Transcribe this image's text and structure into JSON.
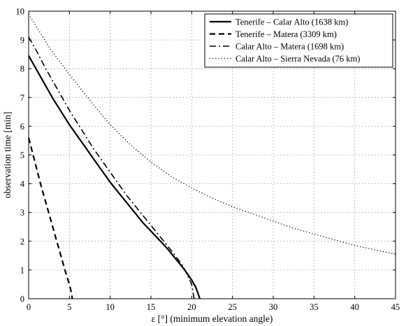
{
  "chart_data": {
    "type": "line",
    "xlabel": "ε [°] (minimum elevation angle)",
    "ylabel": "observation time [min]",
    "xlim": [
      0,
      45
    ],
    "ylim": [
      0,
      10
    ],
    "xticks": [
      0,
      5,
      10,
      15,
      20,
      25,
      30,
      35,
      40,
      45
    ],
    "yticks": [
      0,
      1,
      2,
      3,
      4,
      5,
      6,
      7,
      8,
      9,
      10
    ],
    "grid": true,
    "legend_position": "top-right",
    "series": [
      {
        "name": "Tenerife – Calar Alto (1638 km)",
        "style": "solid",
        "color": "#000000",
        "points": [
          [
            0,
            8.45
          ],
          [
            1,
            7.95
          ],
          [
            2,
            7.45
          ],
          [
            3,
            6.95
          ],
          [
            4,
            6.5
          ],
          [
            5,
            6.05
          ],
          [
            6,
            5.65
          ],
          [
            7,
            5.25
          ],
          [
            8,
            4.85
          ],
          [
            9,
            4.45
          ],
          [
            10,
            4.05
          ],
          [
            11,
            3.7
          ],
          [
            12,
            3.35
          ],
          [
            13,
            3.0
          ],
          [
            14,
            2.65
          ],
          [
            15,
            2.35
          ],
          [
            16,
            2.05
          ],
          [
            17,
            1.75
          ],
          [
            18,
            1.4
          ],
          [
            19,
            1.05
          ],
          [
            20,
            0.65
          ],
          [
            20.5,
            0.4
          ],
          [
            21,
            0.0
          ]
        ]
      },
      {
        "name": "Tenerife – Matera (3309 km)",
        "style": "dashed",
        "color": "#000000",
        "points": [
          [
            0,
            5.6
          ],
          [
            0.5,
            5.05
          ],
          [
            1,
            4.5
          ],
          [
            1.5,
            3.95
          ],
          [
            2,
            3.45
          ],
          [
            2.5,
            2.95
          ],
          [
            3,
            2.45
          ],
          [
            3.5,
            1.95
          ],
          [
            4,
            1.45
          ],
          [
            4.5,
            0.95
          ],
          [
            5,
            0.5
          ],
          [
            5.25,
            0.2
          ],
          [
            5.35,
            0.0
          ]
        ]
      },
      {
        "name": "Calar Alto – Matera (1698 km)",
        "style": "dashdot",
        "color": "#000000",
        "points": [
          [
            0,
            9.1
          ],
          [
            1,
            8.6
          ],
          [
            2,
            8.05
          ],
          [
            3,
            7.55
          ],
          [
            4,
            7.05
          ],
          [
            5,
            6.55
          ],
          [
            6,
            6.1
          ],
          [
            7,
            5.65
          ],
          [
            8,
            5.2
          ],
          [
            9,
            4.8
          ],
          [
            10,
            4.4
          ],
          [
            11,
            4.0
          ],
          [
            12,
            3.6
          ],
          [
            13,
            3.25
          ],
          [
            14,
            2.9
          ],
          [
            15,
            2.55
          ],
          [
            16,
            2.2
          ],
          [
            17,
            1.85
          ],
          [
            18,
            1.5
          ],
          [
            19,
            1.1
          ],
          [
            20,
            0.5
          ],
          [
            20.3,
            0.0
          ]
        ]
      },
      {
        "name": "Calar Alto – Sierra Nevada (76 km)",
        "style": "dotted",
        "color": "#000000",
        "points": [
          [
            0,
            9.9
          ],
          [
            2.5,
            8.75
          ],
          [
            5,
            7.8
          ],
          [
            7.5,
            6.9
          ],
          [
            10,
            6.05
          ],
          [
            12.5,
            5.35
          ],
          [
            15,
            4.75
          ],
          [
            17.5,
            4.25
          ],
          [
            20,
            3.85
          ],
          [
            22.5,
            3.5
          ],
          [
            25,
            3.2
          ],
          [
            27.5,
            2.95
          ],
          [
            30,
            2.7
          ],
          [
            32.5,
            2.45
          ],
          [
            35,
            2.25
          ],
          [
            37.5,
            2.05
          ],
          [
            40,
            1.85
          ],
          [
            42.5,
            1.7
          ],
          [
            45,
            1.55
          ]
        ]
      }
    ]
  }
}
